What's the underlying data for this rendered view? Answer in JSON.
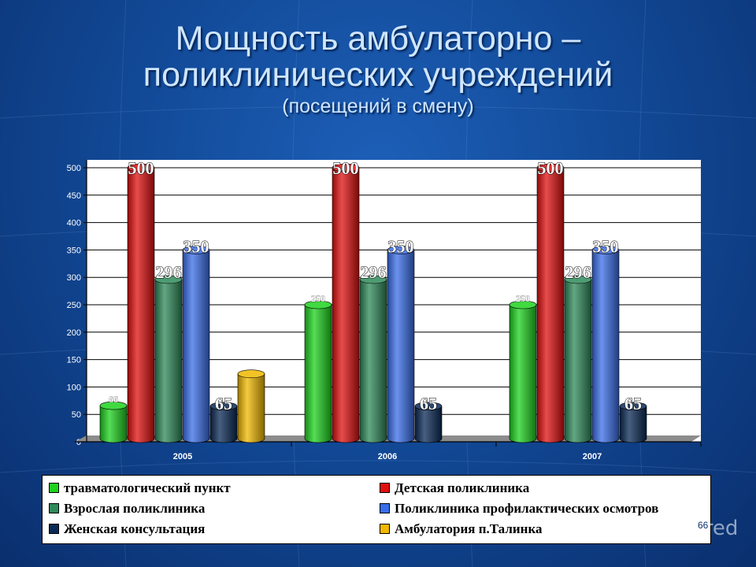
{
  "title": {
    "line1": "Мощность амбулаторно –",
    "line2": "поликлинических учреждений",
    "line3": "(посещений в смену)"
  },
  "chart_data": {
    "type": "bar",
    "categories": [
      "2005",
      "2006",
      "2007"
    ],
    "ylim": [
      0,
      500
    ],
    "yticks": [
      "0",
      "50",
      "100",
      "150",
      "200",
      "250",
      "300",
      "350",
      "400",
      "450",
      "500"
    ],
    "grid": true,
    "legend_position": "bottom",
    "series": [
      {
        "name": "травматологический пункт",
        "color": "#1ed21e",
        "values": [
          66,
          250,
          250
        ],
        "labels": [
          "66",
          "250",
          "250"
        ]
      },
      {
        "name": "Детская поликлиника",
        "color": "#e01010",
        "values": [
          500,
          500,
          500
        ],
        "labels": [
          "500",
          "500",
          "500"
        ]
      },
      {
        "name": "Взрослая поликлиника",
        "color": "#2f8a5a",
        "values": [
          296,
          296,
          296
        ],
        "labels": [
          "296",
          "296",
          "296"
        ]
      },
      {
        "name": "Поликлиника профилактических осмотров",
        "color": "#3a6ee8",
        "values": [
          350,
          350,
          350
        ],
        "labels": [
          "350",
          "350",
          "350"
        ]
      },
      {
        "name": "Женская консультация",
        "color": "#0b2a55",
        "values": [
          65,
          65,
          65
        ],
        "labels": [
          "65",
          "65",
          "65"
        ]
      },
      {
        "name": "Амбулатория п.Талинка",
        "color": "#f0b800",
        "values": [
          124,
          0,
          0
        ],
        "labels": [
          "",
          "",
          ""
        ]
      }
    ]
  },
  "page_number": "66",
  "watermark": "MyShared"
}
